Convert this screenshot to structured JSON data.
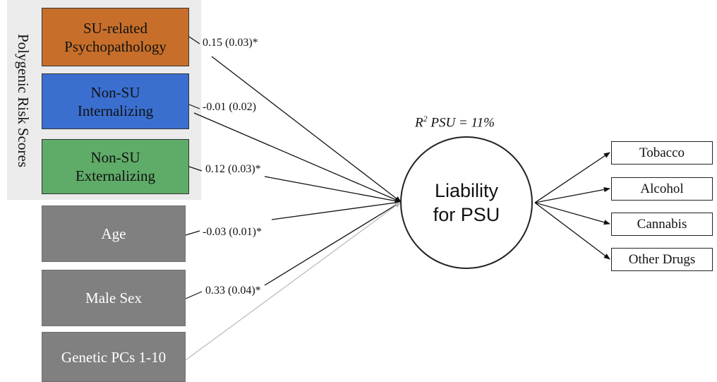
{
  "predictor_group": {
    "label": "Polygenic Risk Scores"
  },
  "predictors": [
    {
      "lines": [
        "SU-related",
        "Psychopathology"
      ],
      "color": "#c76f2a",
      "coef": "0.15 (0.03)*"
    },
    {
      "lines": [
        "Non-SU",
        "Internalizing"
      ],
      "color": "#3a6fd0",
      "coef": "-0.01 (0.02)"
    },
    {
      "lines": [
        "Non-SU",
        "Externalizing"
      ],
      "color": "#5fab68",
      "coef": "0.12 (0.03)*"
    },
    {
      "lines": [
        "Age"
      ],
      "color": "#808080",
      "coef": "-0.03 (0.01)*"
    },
    {
      "lines": [
        "Male Sex"
      ],
      "color": "#808080",
      "coef": "0.33 (0.04)*"
    },
    {
      "lines": [
        "Genetic PCs 1-10"
      ],
      "color": "#808080",
      "coef": ""
    }
  ],
  "r_squared": {
    "prefix": "R",
    "superscript": "2",
    "text": " PSU = 11%"
  },
  "latent": {
    "line1": "Liability",
    "line2": "for PSU"
  },
  "indicators": [
    "Tobacco",
    "Alcohol",
    "Cannabis",
    "Other Drugs"
  ],
  "colors": {
    "path": "#111111",
    "nonsig_path": "#bdbdbd",
    "group_bg": "#ebebeb"
  }
}
